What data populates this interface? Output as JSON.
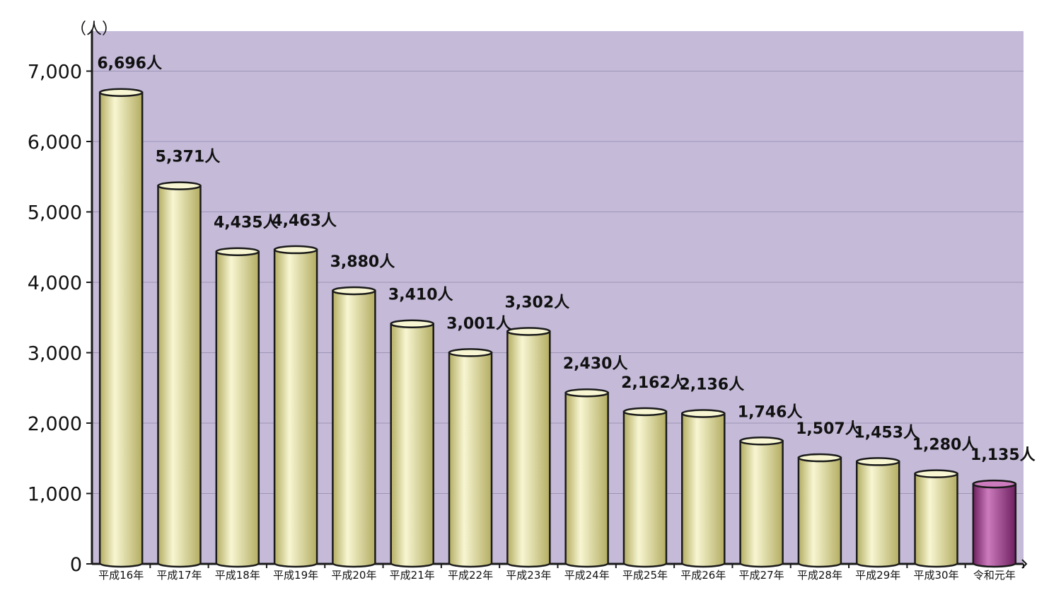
{
  "chart_data": {
    "type": "bar",
    "title": "",
    "xlabel": "",
    "ylabel": "（人）",
    "ylim": [
      0,
      7000
    ],
    "yticks": [
      0,
      1000,
      2000,
      3000,
      4000,
      5000,
      6000,
      7000
    ],
    "ytick_labels": [
      "0",
      "1,000",
      "2,000",
      "3,000",
      "4,000",
      "5,000",
      "6,000",
      "7,000"
    ],
    "grid": true,
    "legend": "none",
    "categories": [
      "平成16年",
      "平成17年",
      "平成18年",
      "平成19年",
      "平成20年",
      "平成21年",
      "平成22年",
      "平成23年",
      "平成24年",
      "平成25年",
      "平成26年",
      "平成27年",
      "平成28年",
      "平成29年",
      "平成30年",
      "令和元年"
    ],
    "values": [
      6696,
      5371,
      4435,
      4463,
      3880,
      3410,
      3001,
      3302,
      2430,
      2162,
      2136,
      1746,
      1507,
      1453,
      1280,
      1135
    ],
    "data_labels": [
      "6,696人",
      "5,371人",
      "4,435人",
      "4,463人",
      "3,880人",
      "3,410人",
      "3,001人",
      "3,302人",
      "2,430人",
      "2,162人",
      "2,136人",
      "1,746人",
      "1,507人",
      "1,453人",
      "1,280人",
      "1,135人"
    ],
    "colors": {
      "plot_background": "#c5bbd9",
      "grid": "#9d93b3",
      "bar": "#e8e49a",
      "bar_highlight": "#f8f6d2",
      "bar_shade": "#b3ad62",
      "highlight_bar": "#a2418f",
      "highlight_bar_light": "#cc7cbd",
      "highlight_bar_shade": "#6e1f60",
      "outline": "#1a1a1a"
    },
    "highlight_index": 15
  }
}
